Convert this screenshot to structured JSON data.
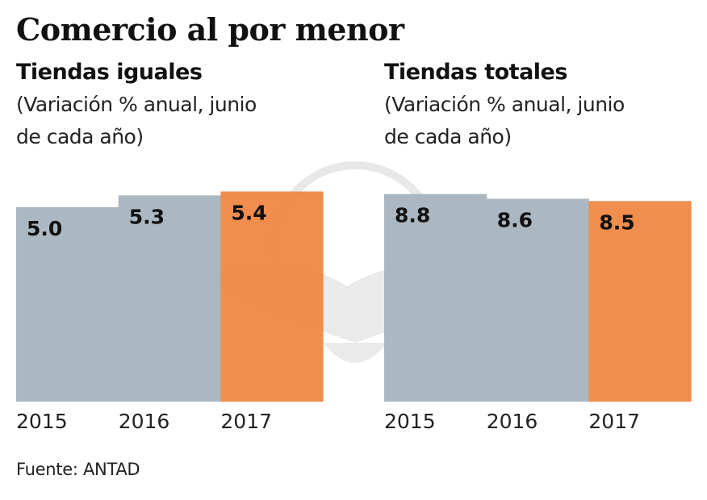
{
  "title": "Comercio al por menor",
  "source": "Fuente: ANTAD",
  "colors": {
    "default_bar": "#a5b3bd",
    "highlight_bar": "#f08440"
  },
  "chart_data": [
    {
      "type": "bar",
      "title": "Tiendas iguales",
      "subtitle_line1": "(Variación % anual, junio",
      "subtitle_line2": "de cada año)",
      "categories": [
        "2015",
        "2016",
        "2017"
      ],
      "values": [
        5.0,
        5.3,
        5.4
      ],
      "labels": [
        "5.0",
        "5.3",
        "5.4"
      ],
      "highlight": [
        false,
        false,
        true
      ],
      "xlabel": "",
      "ylabel": "",
      "ylim": [
        0,
        5.7
      ],
      "grid": false,
      "legend": "none"
    },
    {
      "type": "bar",
      "title": "Tiendas totales",
      "subtitle_line1": "(Variación % anual, junio",
      "subtitle_line2": "de cada año)",
      "categories": [
        "2015",
        "2016",
        "2017"
      ],
      "values": [
        8.8,
        8.6,
        8.5
      ],
      "labels": [
        "8.8",
        "8.6",
        "8.5"
      ],
      "highlight": [
        false,
        false,
        true
      ],
      "xlabel": "",
      "ylabel": "",
      "ylim": [
        0,
        9.4
      ],
      "grid": false,
      "legend": "none"
    }
  ]
}
